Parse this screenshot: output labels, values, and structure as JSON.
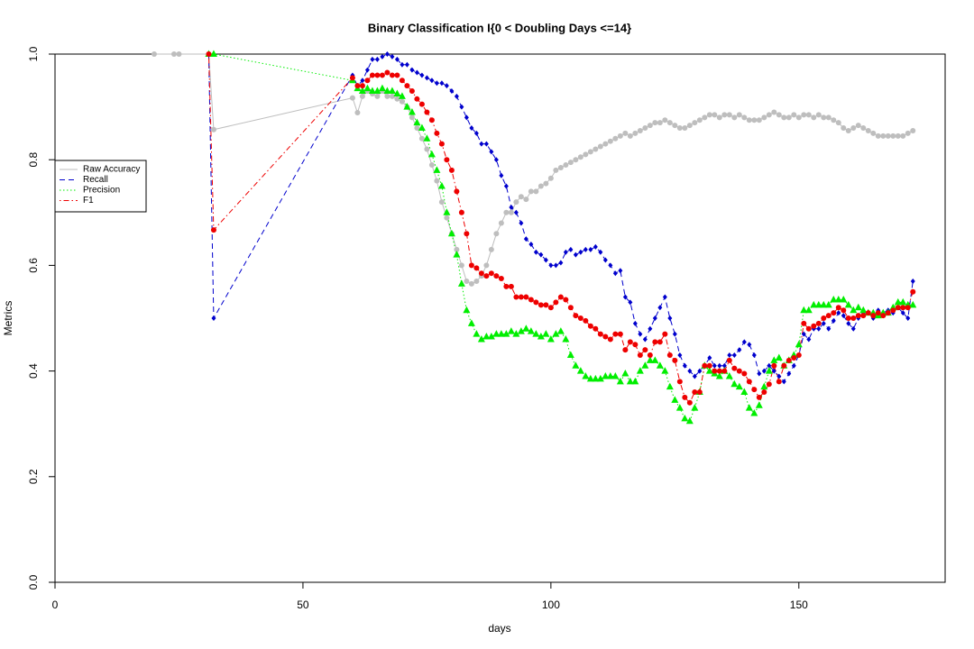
{
  "chart_data": {
    "type": "line",
    "title": "Binary Classification I{0 < Doubling Days <=14}",
    "x_label": "days",
    "y_label": "Metrics",
    "xlim": [
      0,
      179.5
    ],
    "ylim": [
      0,
      1
    ],
    "xticks": [
      0,
      50,
      100,
      150
    ],
    "yticks": [
      {
        "value": 0,
        "label": "0.0"
      },
      0.2,
      0.4,
      0.6,
      0.8,
      {
        "value": 1,
        "label": "1.0"
      }
    ],
    "legend": "left",
    "x": [
      20,
      24,
      25,
      31,
      32,
      60,
      61,
      62,
      63,
      64,
      65,
      66,
      67,
      68,
      69,
      70,
      71,
      72,
      73,
      74,
      75,
      76,
      77,
      78,
      79,
      80,
      81,
      82,
      83,
      84,
      85,
      86,
      87,
      88,
      89,
      90,
      91,
      92,
      93,
      94,
      95,
      96,
      97,
      98,
      99,
      100,
      101,
      102,
      103,
      104,
      105,
      106,
      107,
      108,
      109,
      110,
      111,
      112,
      113,
      114,
      115,
      116,
      117,
      118,
      119,
      120,
      121,
      122,
      123,
      124,
      125,
      126,
      127,
      128,
      129,
      130,
      131,
      132,
      133,
      134,
      135,
      136,
      137,
      138,
      139,
      140,
      141,
      142,
      143,
      144,
      145,
      146,
      147,
      148,
      149,
      150,
      151,
      152,
      153,
      154,
      155,
      156,
      157,
      158,
      159,
      160,
      161,
      162,
      163,
      164,
      165,
      166,
      167,
      168,
      169,
      170,
      171,
      172,
      173
    ],
    "series": [
      {
        "name": "Raw Accuracy",
        "color": "#bebebe",
        "line": "solid",
        "marker": "circle",
        "values": [
          1,
          1,
          1,
          1,
          0.857,
          0.917,
          0.889,
          0.92,
          0.93,
          0.925,
          0.92,
          0.93,
          0.92,
          0.92,
          0.915,
          0.91,
          0.9,
          0.88,
          0.86,
          0.84,
          0.82,
          0.79,
          0.76,
          0.72,
          0.69,
          0.66,
          0.63,
          0.6,
          0.57,
          0.565,
          0.57,
          0.58,
          0.6,
          0.63,
          0.66,
          0.68,
          0.7,
          0.7,
          0.72,
          0.73,
          0.725,
          0.74,
          0.74,
          0.75,
          0.755,
          0.765,
          0.78,
          0.785,
          0.79,
          0.795,
          0.8,
          0.805,
          0.81,
          0.815,
          0.82,
          0.825,
          0.83,
          0.835,
          0.84,
          0.845,
          0.85,
          0.845,
          0.85,
          0.855,
          0.86,
          0.865,
          0.87,
          0.87,
          0.875,
          0.87,
          0.865,
          0.86,
          0.86,
          0.865,
          0.87,
          0.875,
          0.88,
          0.885,
          0.885,
          0.88,
          0.885,
          0.885,
          0.88,
          0.885,
          0.88,
          0.875,
          0.875,
          0.875,
          0.88,
          0.885,
          0.89,
          0.885,
          0.88,
          0.88,
          0.885,
          0.88,
          0.885,
          0.885,
          0.88,
          0.885,
          0.88,
          0.88,
          0.875,
          0.87,
          0.86,
          0.855,
          0.86,
          0.865,
          0.86,
          0.855,
          0.85,
          0.845,
          0.845,
          0.845,
          0.845,
          0.845,
          0.845,
          0.85,
          0.855
        ]
      },
      {
        "name": "Recall",
        "color": "#0000cd",
        "line": "dashed",
        "marker": "diamond",
        "values": [
          null,
          null,
          null,
          1,
          0.5,
          0.96,
          0.94,
          0.95,
          0.97,
          0.99,
          0.99,
          0.995,
          1,
          0.995,
          0.99,
          0.98,
          0.98,
          0.97,
          0.965,
          0.96,
          0.955,
          0.95,
          0.945,
          0.945,
          0.94,
          0.93,
          0.92,
          0.9,
          0.88,
          0.86,
          0.85,
          0.83,
          0.83,
          0.815,
          0.8,
          0.77,
          0.75,
          0.71,
          0.7,
          0.68,
          0.65,
          0.64,
          0.625,
          0.62,
          0.61,
          0.6,
          0.6,
          0.605,
          0.625,
          0.63,
          0.62,
          0.625,
          0.63,
          0.63,
          0.635,
          0.625,
          0.61,
          0.6,
          0.585,
          0.59,
          0.54,
          0.53,
          0.49,
          0.47,
          0.46,
          0.48,
          0.5,
          0.52,
          0.54,
          0.5,
          0.47,
          0.43,
          0.41,
          0.4,
          0.39,
          0.4,
          0.41,
          0.425,
          0.41,
          0.41,
          0.41,
          0.43,
          0.43,
          0.44,
          0.455,
          0.45,
          0.43,
          0.395,
          0.4,
          0.41,
          0.4,
          0.39,
          0.38,
          0.395,
          0.41,
          0.43,
          0.47,
          0.46,
          0.48,
          0.48,
          0.49,
          0.48,
          0.495,
          0.51,
          0.505,
          0.49,
          0.48,
          0.5,
          0.51,
          0.51,
          0.5,
          0.515,
          0.51,
          0.515,
          0.51,
          0.52,
          0.51,
          0.5,
          0.57
        ]
      },
      {
        "name": "Precision",
        "color": "#00ee00",
        "line": "dotted",
        "marker": "triangle",
        "values": [
          null,
          null,
          null,
          1,
          1,
          0.95,
          0.935,
          0.93,
          0.935,
          0.93,
          0.93,
          0.935,
          0.93,
          0.93,
          0.925,
          0.92,
          0.9,
          0.89,
          0.87,
          0.86,
          0.84,
          0.81,
          0.78,
          0.75,
          0.7,
          0.66,
          0.62,
          0.565,
          0.515,
          0.49,
          0.47,
          0.46,
          0.465,
          0.465,
          0.47,
          0.47,
          0.47,
          0.475,
          0.47,
          0.475,
          0.48,
          0.475,
          0.47,
          0.465,
          0.47,
          0.46,
          0.47,
          0.475,
          0.46,
          0.43,
          0.41,
          0.4,
          0.39,
          0.385,
          0.385,
          0.385,
          0.39,
          0.39,
          0.39,
          0.38,
          0.395,
          0.38,
          0.38,
          0.4,
          0.41,
          0.42,
          0.42,
          0.41,
          0.4,
          0.37,
          0.345,
          0.33,
          0.31,
          0.305,
          0.33,
          0.36,
          0.41,
          0.4,
          0.395,
          0.39,
          0.4,
          0.39,
          0.375,
          0.37,
          0.36,
          0.33,
          0.32,
          0.335,
          0.37,
          0.4,
          0.42,
          0.425,
          0.41,
          0.42,
          0.43,
          0.45,
          0.515,
          0.515,
          0.525,
          0.525,
          0.525,
          0.525,
          0.535,
          0.535,
          0.535,
          0.525,
          0.515,
          0.52,
          0.515,
          0.51,
          0.51,
          0.505,
          0.51,
          0.51,
          0.52,
          0.53,
          0.53,
          0.525,
          0.525
        ]
      },
      {
        "name": "F1",
        "color": "#ee0000",
        "line": "dotdash",
        "marker": "circle",
        "values": [
          null,
          null,
          null,
          1,
          0.667,
          0.955,
          0.94,
          0.94,
          0.95,
          0.96,
          0.96,
          0.96,
          0.965,
          0.96,
          0.96,
          0.95,
          0.94,
          0.93,
          0.915,
          0.905,
          0.89,
          0.875,
          0.85,
          0.83,
          0.8,
          0.78,
          0.74,
          0.7,
          0.66,
          0.6,
          0.595,
          0.585,
          0.58,
          0.585,
          0.58,
          0.575,
          0.56,
          0.56,
          0.54,
          0.54,
          0.54,
          0.535,
          0.53,
          0.525,
          0.525,
          0.52,
          0.53,
          0.54,
          0.535,
          0.52,
          0.505,
          0.5,
          0.495,
          0.485,
          0.48,
          0.47,
          0.465,
          0.46,
          0.47,
          0.47,
          0.44,
          0.455,
          0.45,
          0.43,
          0.44,
          0.43,
          0.455,
          0.455,
          0.47,
          0.43,
          0.42,
          0.38,
          0.35,
          0.34,
          0.36,
          0.36,
          0.41,
          0.41,
          0.4,
          0.4,
          0.4,
          0.42,
          0.405,
          0.4,
          0.395,
          0.38,
          0.365,
          0.35,
          0.36,
          0.375,
          0.41,
          0.38,
          0.41,
          0.42,
          0.425,
          0.43,
          0.49,
          0.48,
          0.485,
          0.49,
          0.5,
          0.505,
          0.51,
          0.52,
          0.515,
          0.5,
          0.5,
          0.505,
          0.505,
          0.51,
          0.505,
          0.51,
          0.505,
          0.51,
          0.515,
          0.52,
          0.52,
          0.52,
          0.55
        ]
      }
    ]
  }
}
